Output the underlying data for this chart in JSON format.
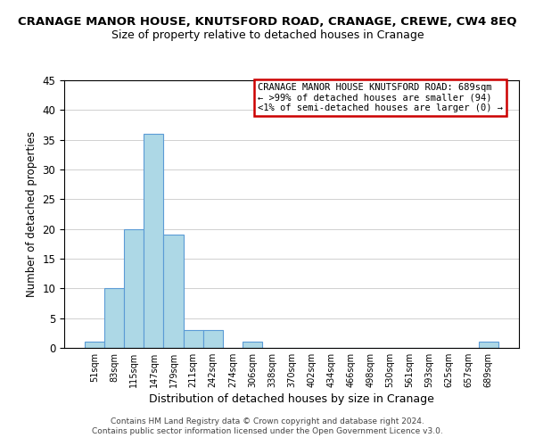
{
  "title": "CRANAGE MANOR HOUSE, KNUTSFORD ROAD, CRANAGE, CREWE, CW4 8EQ",
  "subtitle": "Size of property relative to detached houses in Cranage",
  "xlabel": "Distribution of detached houses by size in Cranage",
  "ylabel": "Number of detached properties",
  "bar_labels": [
    "51sqm",
    "83sqm",
    "115sqm",
    "147sqm",
    "179sqm",
    "211sqm",
    "242sqm",
    "274sqm",
    "306sqm",
    "338sqm",
    "370sqm",
    "402sqm",
    "434sqm",
    "466sqm",
    "498sqm",
    "530sqm",
    "561sqm",
    "593sqm",
    "625sqm",
    "657sqm",
    "689sqm"
  ],
  "bar_heights": [
    1,
    10,
    20,
    36,
    19,
    3,
    3,
    0,
    1,
    0,
    0,
    0,
    0,
    0,
    0,
    0,
    0,
    0,
    0,
    0,
    1
  ],
  "bar_color": "#add8e6",
  "bar_edge_color": "#5b9bd5",
  "ylim": [
    0,
    45
  ],
  "yticks": [
    0,
    5,
    10,
    15,
    20,
    25,
    30,
    35,
    40,
    45
  ],
  "annotation_box_text_line1": "CRANAGE MANOR HOUSE KNUTSFORD ROAD: 689sqm",
  "annotation_box_text_line2": "← >99% of detached houses are smaller (94)",
  "annotation_box_text_line3": "<1% of semi-detached houses are larger (0) →",
  "annotation_box_edgecolor": "#cc0000",
  "annotation_box_facecolor": "#ffffff",
  "footer_line1": "Contains HM Land Registry data © Crown copyright and database right 2024.",
  "footer_line2": "Contains public sector information licensed under the Open Government Licence v3.0.",
  "background_color": "#ffffff",
  "grid_color": "#d0d0d0"
}
